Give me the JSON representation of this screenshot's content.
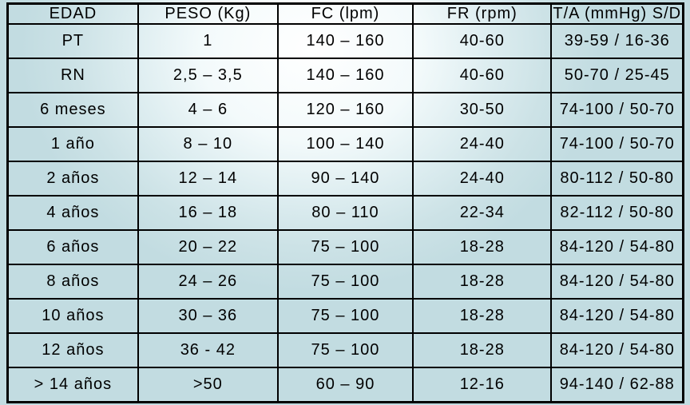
{
  "colors": {
    "border": "#000000",
    "text": "#000000",
    "background_edge": "#c2dce1",
    "background_core": "#ffffff",
    "cell_tint": "#d5e8ec"
  },
  "chart_data": {
    "type": "table",
    "columns": [
      "EDAD",
      "PESO (Kg)",
      "FC (lpm)",
      "FR (rpm)",
      "T/A (mmHg) S/D"
    ],
    "rows": [
      [
        "PT",
        "1",
        "140 – 160",
        "40-60",
        "39-59 / 16-36"
      ],
      [
        "RN",
        "2,5 – 3,5",
        "140 – 160",
        "40-60",
        "50-70 / 25-45"
      ],
      [
        "6 meses",
        "4 – 6",
        "120 – 160",
        "30-50",
        "74-100 / 50-70"
      ],
      [
        "1 año",
        "8 – 10",
        "100 – 140",
        "24-40",
        "74-100 / 50-70"
      ],
      [
        "2 años",
        "12 – 14",
        "90 – 140",
        "24-40",
        "80-112 / 50-80"
      ],
      [
        "4 años",
        "16 – 18",
        "80 – 110",
        "22-34",
        "82-112 / 50-80"
      ],
      [
        "6 años",
        "20 – 22",
        "75 – 100",
        "18-28",
        "84-120 / 54-80"
      ],
      [
        "8 años",
        "24 – 26",
        "75 – 100",
        "18-28",
        "84-120 / 54-80"
      ],
      [
        "10 años",
        "30 – 36",
        "75 – 100",
        "18-28",
        "84-120 / 54-80"
      ],
      [
        "12 años",
        "36 - 42",
        "75 – 100",
        "18-28",
        "84-120 / 54-80"
      ],
      [
        "> 14 años",
        ">50",
        "60 – 90",
        "12-16",
        "94-140 / 62-88"
      ]
    ]
  }
}
